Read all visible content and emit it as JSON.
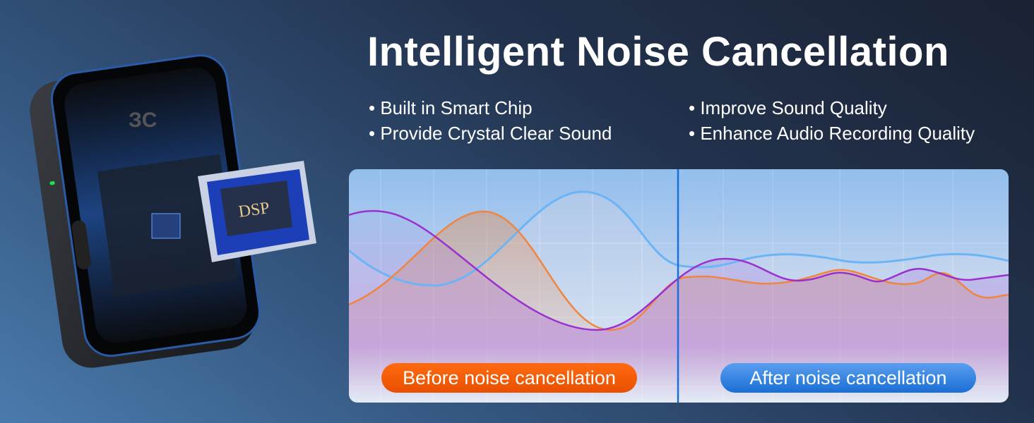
{
  "headline": "Intelligent Noise Cancellation",
  "features_left": [
    "Built in Smart Chip",
    "Provide Crystal Clear Sound"
  ],
  "features_right": [
    "Improve Sound Quality",
    "Enhance Audio Recording Quality"
  ],
  "product": {
    "logo_text": "ЗC",
    "chip_label": "DSP",
    "led_color": "#22e04a"
  },
  "comparison": {
    "before_label": "Before noise cancellation",
    "after_label": "After noise cancellation",
    "colors": {
      "before": "#f55a05",
      "after": "#2a7ee0",
      "divider": "#1a6fe0",
      "purple": "#9b2fd0",
      "orange": "#f0853f",
      "blue": "#6bb4f5"
    }
  }
}
